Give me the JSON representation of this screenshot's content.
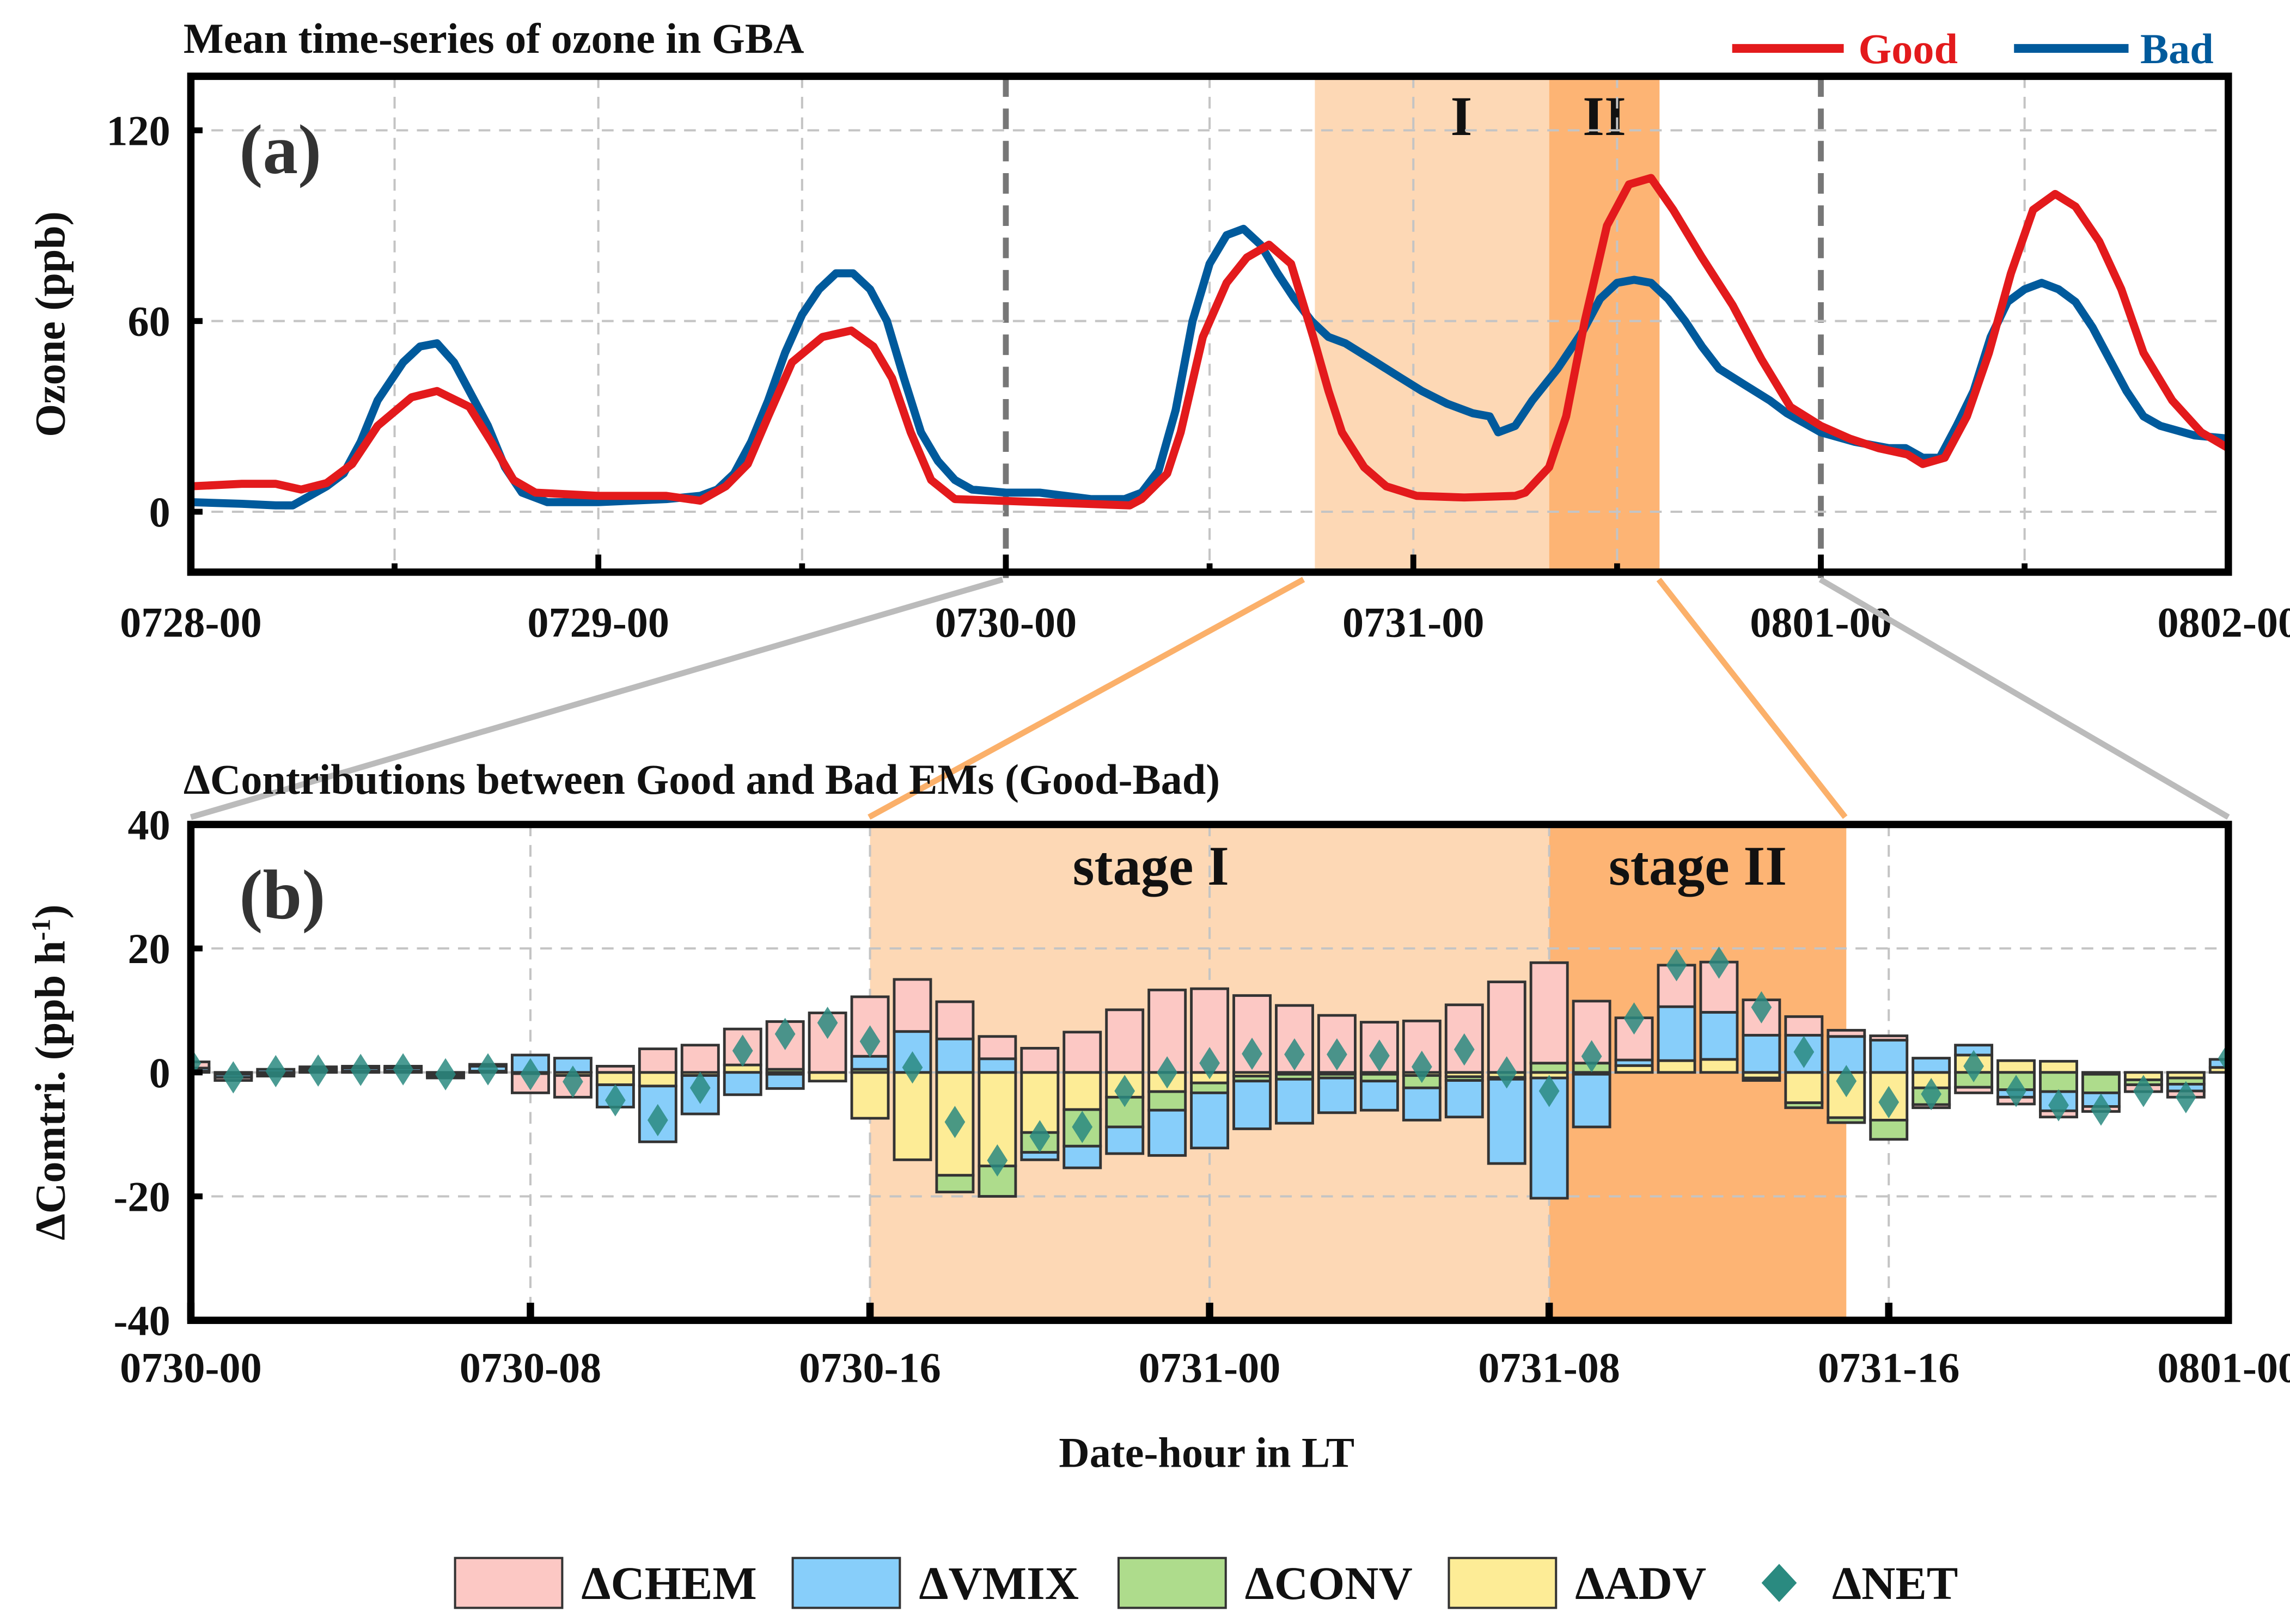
{
  "chart_data": [
    {
      "type": "line",
      "panel_label": "(a)",
      "title": "Mean time-series of ozone in GBA",
      "xlabel": "",
      "ylabel": "Ozone (ppb)",
      "x_unit": "hours since 0728-00",
      "xlim": [
        0,
        120
      ],
      "ylim": [
        -19,
        137
      ],
      "yticks": [
        0,
        60,
        120
      ],
      "xtick_labels": [
        {
          "hour": 0,
          "label": "0728-00"
        },
        {
          "hour": 24,
          "label": "0729-00"
        },
        {
          "hour": 48,
          "label": "0730-00"
        },
        {
          "hour": 72,
          "label": "0731-00"
        },
        {
          "hour": 96,
          "label": "0801-00"
        },
        {
          "hour": 120,
          "label": "0802-00"
        }
      ],
      "grid": true,
      "legend_position": "top-right",
      "stages": [
        {
          "label": "I",
          "start_hour": 66.2,
          "end_hour": 80,
          "color": "#fdd8b5"
        },
        {
          "label": "II",
          "start_hour": 80,
          "end_hour": 86.5,
          "color": "#fdb474"
        }
      ],
      "zoom_marks_hours": [
        48,
        96
      ],
      "series": [
        {
          "name": "Good",
          "color": "#e31a1c",
          "points": [
            [
              0,
              8
            ],
            [
              3,
              8.8
            ],
            [
              5,
              8.8
            ],
            [
              6.5,
              7
            ],
            [
              8,
              9
            ],
            [
              9.5,
              15
            ],
            [
              11,
              27
            ],
            [
              13,
              36
            ],
            [
              14.5,
              38
            ],
            [
              16.4,
              33
            ],
            [
              17.7,
              22
            ],
            [
              19,
              10
            ],
            [
              20.3,
              6
            ],
            [
              24,
              5
            ],
            [
              28,
              5
            ],
            [
              30,
              3.5
            ],
            [
              31.5,
              8
            ],
            [
              32.8,
              15
            ],
            [
              34,
              30
            ],
            [
              35.4,
              47
            ],
            [
              37.2,
              55
            ],
            [
              38.9,
              57
            ],
            [
              40.2,
              52
            ],
            [
              41.3,
              42
            ],
            [
              42.4,
              25
            ],
            [
              43.6,
              10
            ],
            [
              45,
              4
            ],
            [
              50,
              3
            ],
            [
              55.3,
              2
            ],
            [
              56,
              4
            ],
            [
              57.5,
              12
            ],
            [
              58.3,
              25
            ],
            [
              59.6,
              55
            ],
            [
              61,
              72
            ],
            [
              62.2,
              80
            ],
            [
              63.5,
              84
            ],
            [
              64.8,
              78
            ],
            [
              66.1,
              55
            ],
            [
              67,
              38
            ],
            [
              67.8,
              25
            ],
            [
              69.1,
              14
            ],
            [
              70.4,
              8
            ],
            [
              72.2,
              5
            ],
            [
              75,
              4.5
            ],
            [
              78,
              5
            ],
            [
              78.6,
              6
            ],
            [
              80,
              14
            ],
            [
              81,
              30
            ],
            [
              82.1,
              60
            ],
            [
              83.4,
              90
            ],
            [
              84.7,
              103
            ],
            [
              86,
              105
            ],
            [
              87.3,
              95
            ],
            [
              89,
              80
            ],
            [
              90.8,
              65
            ],
            [
              92.5,
              48
            ],
            [
              94.2,
              33
            ],
            [
              96,
              27
            ],
            [
              97.7,
              23
            ],
            [
              99.4,
              20
            ],
            [
              101.1,
              18
            ],
            [
              102,
              15
            ],
            [
              103.3,
              17
            ],
            [
              104.6,
              30
            ],
            [
              105.9,
              50
            ],
            [
              107.2,
              75
            ],
            [
              108.5,
              95
            ],
            [
              109.8,
              100
            ],
            [
              111,
              96
            ],
            [
              112.4,
              85
            ],
            [
              113.7,
              70
            ],
            [
              115,
              50
            ],
            [
              116.7,
              35
            ],
            [
              118.4,
              25
            ],
            [
              120,
              20
            ]
          ]
        },
        {
          "name": "Bad",
          "color": "#005a9c",
          "points": [
            [
              0,
              3
            ],
            [
              3,
              2.5
            ],
            [
              5,
              2
            ],
            [
              6,
              2
            ],
            [
              7,
              5
            ],
            [
              8,
              8
            ],
            [
              9,
              12
            ],
            [
              10,
              22
            ],
            [
              11,
              35
            ],
            [
              12.5,
              47
            ],
            [
              13.5,
              52
            ],
            [
              14.5,
              53
            ],
            [
              15.5,
              47
            ],
            [
              16.5,
              37
            ],
            [
              17.5,
              27
            ],
            [
              18.5,
              14
            ],
            [
              19.5,
              6
            ],
            [
              21,
              3
            ],
            [
              24,
              3
            ],
            [
              28,
              4
            ],
            [
              30,
              5
            ],
            [
              31,
              7
            ],
            [
              32,
              12
            ],
            [
              33,
              22
            ],
            [
              34,
              35
            ],
            [
              35,
              50
            ],
            [
              36,
              62
            ],
            [
              37,
              70
            ],
            [
              38,
              75
            ],
            [
              39,
              75
            ],
            [
              40,
              70
            ],
            [
              41,
              60
            ],
            [
              42,
              42
            ],
            [
              43,
              25
            ],
            [
              44,
              16
            ],
            [
              45,
              10
            ],
            [
              46,
              7
            ],
            [
              48,
              6
            ],
            [
              50,
              6
            ],
            [
              53,
              4
            ],
            [
              55,
              4
            ],
            [
              56,
              6
            ],
            [
              57,
              13
            ],
            [
              58,
              32
            ],
            [
              59,
              60
            ],
            [
              60,
              78
            ],
            [
              61,
              87
            ],
            [
              62,
              89
            ],
            [
              63,
              84
            ],
            [
              64,
              75
            ],
            [
              65,
              67
            ],
            [
              66,
              60
            ],
            [
              67,
              55
            ],
            [
              68,
              53
            ],
            [
              69.5,
              48
            ],
            [
              71,
              43
            ],
            [
              72.5,
              38
            ],
            [
              74,
              34
            ],
            [
              75.5,
              31
            ],
            [
              76.5,
              30
            ],
            [
              77,
              25
            ],
            [
              78,
              27
            ],
            [
              79,
              35
            ],
            [
              80.5,
              45
            ],
            [
              82,
              57
            ],
            [
              83,
              67
            ],
            [
              84,
              72
            ],
            [
              85,
              73
            ],
            [
              86,
              72
            ],
            [
              87,
              67
            ],
            [
              88,
              60
            ],
            [
              89,
              52
            ],
            [
              90,
              45
            ],
            [
              91.5,
              40
            ],
            [
              93,
              35
            ],
            [
              94,
              31
            ],
            [
              95,
              28
            ],
            [
              96,
              25
            ],
            [
              98,
              22
            ],
            [
              100,
              20
            ],
            [
              101,
              20
            ],
            [
              102,
              17
            ],
            [
              103,
              17
            ],
            [
              104,
              27
            ],
            [
              105,
              38
            ],
            [
              106,
              55
            ],
            [
              107,
              66
            ],
            [
              108,
              70
            ],
            [
              109,
              72
            ],
            [
              110,
              70
            ],
            [
              111,
              66
            ],
            [
              112,
              58
            ],
            [
              113,
              48
            ],
            [
              114,
              38
            ],
            [
              115,
              30
            ],
            [
              116,
              27
            ],
            [
              118,
              24
            ],
            [
              120,
              23
            ]
          ]
        }
      ]
    },
    {
      "type": "bar",
      "stacked": true,
      "panel_label": "(b)",
      "title": "ΔContributions between Good and Bad EMs (Good-Bad)",
      "xlabel": "Date-hour in LT",
      "ylabel": "ΔComtri. (ppb h",
      "ylabel_sup": "-1",
      "ylabel_end": ")",
      "x_unit": "hours since 0730-00",
      "xlim": [
        0,
        48
      ],
      "ylim": [
        -40,
        40
      ],
      "yticks": [
        -40,
        -20,
        0,
        20,
        40
      ],
      "xtick_labels": [
        {
          "hour": 0,
          "label": "0730-00"
        },
        {
          "hour": 8,
          "label": "0730-08"
        },
        {
          "hour": 16,
          "label": "0730-16"
        },
        {
          "hour": 24,
          "label": "0731-00"
        },
        {
          "hour": 32,
          "label": "0731-08"
        },
        {
          "hour": 40,
          "label": "0731-16"
        },
        {
          "hour": 48,
          "label": "0801-00"
        }
      ],
      "grid": true,
      "legend_position": "bottom",
      "stages": [
        {
          "label": "stage I",
          "start_hour": 16,
          "end_hour": 32,
          "color": "#fdd8b5"
        },
        {
          "label": "stage II",
          "start_hour": 32,
          "end_hour": 39,
          "color": "#fdb474"
        }
      ],
      "hours": [
        0,
        1,
        2,
        3,
        4,
        5,
        6,
        7,
        8,
        9,
        10,
        11,
        12,
        13,
        14,
        15,
        16,
        17,
        18,
        19,
        20,
        21,
        22,
        23,
        24,
        25,
        26,
        27,
        28,
        29,
        30,
        31,
        32,
        33,
        34,
        35,
        36,
        37,
        38,
        39,
        40,
        41,
        42,
        43,
        44,
        45,
        46,
        47,
        48
      ],
      "series": [
        {
          "name": "ΔCHEM",
          "color": "#fcc8c4",
          "values": [
            1,
            -0.5,
            -0.4,
            0.3,
            0.3,
            0.3,
            -0.3,
            0.3,
            -3.1,
            -3.5,
            1,
            3.8,
            4.4,
            5.8,
            7.7,
            9.6,
            9.6,
            8.4,
            6,
            3.6,
            3.9,
            6.5,
            10.1,
            13.3,
            13.5,
            12.4,
            10.8,
            9.2,
            8.1,
            8.3,
            10.9,
            14.6,
            16.2,
            10,
            6.8,
            6.7,
            8.1,
            5.7,
            3,
            1,
            0.7,
            -0.5,
            -0.9,
            -1.1,
            -1,
            -0.8,
            -1.1,
            -1,
            0
          ]
        },
        {
          "name": "ΔVMIX",
          "color": "#87cefa",
          "values": [
            0.5,
            -0.5,
            0.5,
            0.4,
            0.5,
            0.5,
            -0.4,
            0.8,
            2.8,
            2.3,
            -3.6,
            -9,
            -6.2,
            -3.6,
            -2.3,
            0,
            2.1,
            6.6,
            5.4,
            2.2,
            -1.2,
            -3.5,
            -4.3,
            -7.3,
            -8.9,
            -7.7,
            -7.1,
            -5.6,
            -4.7,
            -5.2,
            -5.9,
            -13.6,
            -19.4,
            -8.5,
            0.9,
            8.7,
            7.6,
            6,
            6,
            5.8,
            5.2,
            2.3,
            1.6,
            -1.2,
            -3.1,
            -2.2,
            0,
            -1.1,
            1.3
          ]
        },
        {
          "name": "ΔCONV",
          "color": "#aedc8c",
          "values": [
            0,
            0,
            0,
            0,
            0,
            0,
            0,
            0,
            0,
            0,
            0,
            0,
            0,
            0,
            0.5,
            0,
            0.5,
            0,
            -2.7,
            -4.9,
            -3.2,
            -5.9,
            -4.8,
            -3,
            -1.6,
            -0.8,
            -0.8,
            -0.6,
            -1.1,
            -2,
            -0.6,
            -0.3,
            1.5,
            1.5,
            0,
            0,
            0,
            -0.4,
            -0.8,
            -0.8,
            -3.1,
            -2.7,
            -2.4,
            -2.8,
            -3.1,
            -3,
            -0.8,
            -1,
            0
          ]
        },
        {
          "name": "ΔADV",
          "color": "#fdec96",
          "values": [
            0.2,
            -0.3,
            -0.2,
            0.2,
            0.2,
            0.2,
            -0.2,
            0.2,
            -0.2,
            -0.5,
            -2,
            -2.2,
            -0.5,
            1.2,
            -0.3,
            -1.4,
            -7.4,
            -14.1,
            -16.6,
            -15.1,
            -9.7,
            -6,
            -4,
            -3.1,
            -1.7,
            -0.6,
            -0.3,
            -0.3,
            -0.3,
            -0.5,
            -0.7,
            -0.8,
            -0.9,
            -0.3,
            1.1,
            1.9,
            2.1,
            -0.9,
            -4.9,
            -7.3,
            -7.7,
            -2.5,
            2.8,
            1.9,
            1.8,
            -0.3,
            -1.2,
            -0.9,
            0.8
          ]
        },
        {
          "name": "ΔNET",
          "color": "#2a8a80",
          "marker": "diamond",
          "values": [
            1.5,
            -0.8,
            0.2,
            0.3,
            0.4,
            0.5,
            -0.3,
            0.5,
            -0.3,
            -1.5,
            -4.5,
            -7.7,
            -2.5,
            3.5,
            6.2,
            8,
            5,
            0.8,
            -8,
            -14.2,
            -10.3,
            -8.8,
            -3,
            0,
            1.5,
            3,
            2.9,
            2.9,
            2.7,
            0.9,
            3.7,
            0,
            -3,
            2.6,
            8.7,
            17.3,
            17.7,
            10.5,
            3.3,
            -1.4,
            -4.8,
            -3.5,
            1,
            -3,
            -5.3,
            -6,
            -3,
            -4,
            2.3
          ]
        }
      ]
    }
  ]
}
